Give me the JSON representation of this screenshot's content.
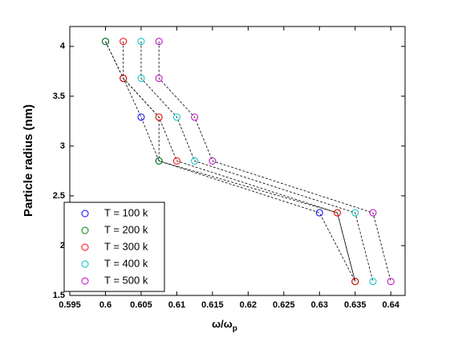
{
  "chart_data": {
    "type": "line",
    "xlabel": "ω/ω",
    "xlabel_subscript": "p",
    "ylabel": "Particle radius (nm)",
    "xlim": [
      0.595,
      0.642
    ],
    "ylim": [
      1.5,
      4.2
    ],
    "xticks": [
      0.595,
      0.6,
      0.605,
      0.61,
      0.615,
      0.62,
      0.625,
      0.63,
      0.635,
      0.64
    ],
    "yticks": [
      1.5,
      2,
      2.5,
      3,
      3.5,
      4
    ],
    "legend": "lower left",
    "series": [
      {
        "name": "T = 100 k",
        "color": "#0000ff",
        "x": [
          0.6,
          0.6025,
          0.605,
          0.6075,
          0.63,
          0.635
        ],
        "values": [
          4.05,
          3.68,
          3.29,
          2.85,
          2.33,
          1.64
        ]
      },
      {
        "name": "T = 200 k",
        "color": "#008000",
        "x": [
          0.6,
          0.6025,
          0.6075,
          0.6075,
          0.6325,
          0.635
        ],
        "values": [
          4.05,
          3.68,
          3.29,
          2.85,
          2.33,
          1.64
        ]
      },
      {
        "name": "T = 300 k",
        "color": "#ff0000",
        "x": [
          0.6025,
          0.6025,
          0.6075,
          0.61,
          0.6325,
          0.635
        ],
        "values": [
          4.05,
          3.68,
          3.29,
          2.85,
          2.33,
          1.64
        ]
      },
      {
        "name": "T = 400 k",
        "color": "#00bfbf",
        "x": [
          0.605,
          0.605,
          0.61,
          0.6125,
          0.635,
          0.6375
        ],
        "values": [
          4.05,
          3.68,
          3.29,
          2.85,
          2.33,
          1.64
        ]
      },
      {
        "name": "T = 500 k",
        "color": "#bf00bf",
        "x": [
          0.6075,
          0.6075,
          0.6125,
          0.615,
          0.6375,
          0.64
        ],
        "values": [
          4.05,
          3.68,
          3.29,
          2.85,
          2.33,
          1.64
        ]
      }
    ]
  }
}
